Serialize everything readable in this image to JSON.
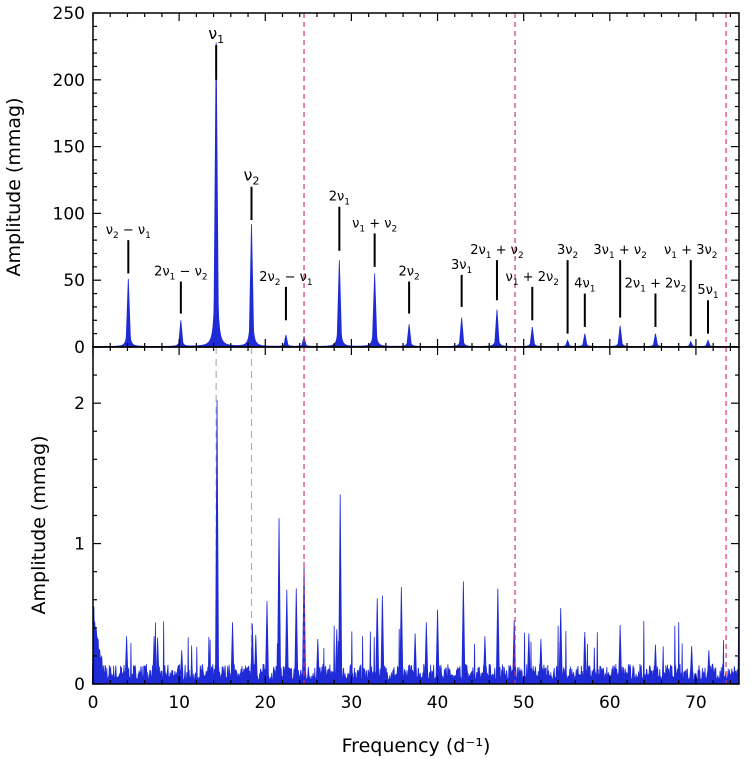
{
  "chart_data": [
    {
      "type": "line",
      "panel": "top",
      "ylabel": "Amplitude (mmag)",
      "xlabel": "",
      "xlim": [
        0,
        75
      ],
      "ylim": [
        0,
        250
      ],
      "xticks": [
        0,
        10,
        20,
        30,
        40,
        50,
        60,
        70
      ],
      "yticks": [
        0,
        50,
        100,
        150,
        200,
        250
      ],
      "grid": false,
      "series_color": "#1f2bd6",
      "vlines_color": "#d6336c",
      "vlines": [
        24.5,
        49.0,
        73.5
      ],
      "peaks": [
        {
          "name": "v2-v1",
          "x": 4.1,
          "y": 51,
          "label_main": "ν",
          "label_sub1": "2",
          "label_op": " − ν",
          "label_sub2": "1",
          "label_prefix": "",
          "tick_top": 80,
          "tick_bottom": 55
        },
        {
          "name": "2v1-v2",
          "x": 10.2,
          "y": 20,
          "label_prefix": "2ν",
          "label_main": "",
          "label_sub1": "1",
          "label_op": " − ν",
          "label_sub2": "2",
          "tick_top": 49,
          "tick_bottom": 25
        },
        {
          "name": "v1",
          "x": 14.3,
          "y": 228,
          "label_prefix": "",
          "label_main": "ν",
          "label_sub1": "1",
          "label_op": "",
          "label_sub2": "",
          "tick_top": 226,
          "tick_bottom": 200
        },
        {
          "name": "v2",
          "x": 18.4,
          "y": 92,
          "label_prefix": "",
          "label_main": "ν",
          "label_sub1": "2",
          "label_op": "",
          "label_sub2": "",
          "tick_top": 120,
          "tick_bottom": 95
        },
        {
          "name": "2v2-v1",
          "x": 22.4,
          "y": 9,
          "label_prefix": "2ν",
          "label_main": "",
          "label_sub1": "2",
          "label_op": " − ν",
          "label_sub2": "1",
          "tick_top": 45,
          "tick_bottom": 20
        },
        {
          "name": "extra-24",
          "x": 24.5,
          "y": 8,
          "label_prefix": "",
          "label_main": "",
          "label_sub1": "",
          "label_op": "",
          "label_sub2": "",
          "tick_top": 0,
          "tick_bottom": 0
        },
        {
          "name": "2v1",
          "x": 28.6,
          "y": 65,
          "label_prefix": "2ν",
          "label_main": "",
          "label_sub1": "1",
          "label_op": "",
          "label_sub2": "",
          "tick_top": 105,
          "tick_bottom": 72
        },
        {
          "name": "v1+v2",
          "x": 32.7,
          "y": 55,
          "label_prefix": "",
          "label_main": "ν",
          "label_sub1": "1",
          "label_op": " + ν",
          "label_sub2": "2",
          "tick_top": 85,
          "tick_bottom": 60
        },
        {
          "name": "2v2",
          "x": 36.7,
          "y": 17,
          "label_prefix": "2ν",
          "label_main": "",
          "label_sub1": "2",
          "label_op": "",
          "label_sub2": "",
          "tick_top": 49,
          "tick_bottom": 25
        },
        {
          "name": "3v1",
          "x": 42.8,
          "y": 22,
          "label_prefix": "3ν",
          "label_main": "",
          "label_sub1": "1",
          "label_op": "",
          "label_sub2": "",
          "tick_top": 54,
          "tick_bottom": 30
        },
        {
          "name": "2v1+v2",
          "x": 46.9,
          "y": 28,
          "label_prefix": "2ν",
          "label_main": "",
          "label_sub1": "1",
          "label_op": " + ν",
          "label_sub2": "2",
          "tick_top": 65,
          "tick_bottom": 35
        },
        {
          "name": "v1+2v2",
          "x": 51.0,
          "y": 15,
          "label_prefix": "",
          "label_main": "ν",
          "label_sub1": "1",
          "label_op": " + 2ν",
          "label_sub2": "2",
          "tick_top": 45,
          "tick_bottom": 20
        },
        {
          "name": "3v2",
          "x": 55.1,
          "y": 5,
          "label_prefix": "3ν",
          "label_main": "",
          "label_sub1": "2",
          "label_op": "",
          "label_sub2": "",
          "tick_top": 65,
          "tick_bottom": 10
        },
        {
          "name": "4v1",
          "x": 57.1,
          "y": 10,
          "label_prefix": "4ν",
          "label_main": "",
          "label_sub1": "1",
          "label_op": "",
          "label_sub2": "",
          "tick_top": 40,
          "tick_bottom": 15
        },
        {
          "name": "3v1+v2",
          "x": 61.2,
          "y": 16,
          "label_prefix": "3ν",
          "label_main": "",
          "label_sub1": "1",
          "label_op": " + ν",
          "label_sub2": "2",
          "tick_top": 65,
          "tick_bottom": 22
        },
        {
          "name": "2v1+2v2",
          "x": 65.3,
          "y": 10,
          "label_prefix": "2ν",
          "label_main": "",
          "label_sub1": "1",
          "label_op": " + 2ν",
          "label_sub2": "2",
          "tick_top": 40,
          "tick_bottom": 15
        },
        {
          "name": "v1+3v2",
          "x": 69.4,
          "y": 4,
          "label_prefix": "",
          "label_main": "ν",
          "label_sub1": "1",
          "label_op": " + 3ν",
          "label_sub2": "2",
          "tick_top": 65,
          "tick_bottom": 8
        },
        {
          "name": "5v1",
          "x": 71.4,
          "y": 5,
          "label_prefix": "5ν",
          "label_main": "",
          "label_sub1": "1",
          "label_op": "",
          "label_sub2": "",
          "tick_top": 35,
          "tick_bottom": 10
        }
      ]
    },
    {
      "type": "line",
      "panel": "bottom",
      "ylabel": "Amplitude (mmag)",
      "xlabel": "Frequency (d⁻¹)",
      "xlim": [
        0,
        75
      ],
      "ylim": [
        0,
        2.4
      ],
      "xticks": [
        0,
        10,
        20,
        30,
        40,
        50,
        60,
        70
      ],
      "yticks": [
        0,
        1,
        2
      ],
      "grid": false,
      "series_color": "#1f2bd6",
      "vlines_color": "#d6336c",
      "vlines": [
        24.5,
        49.0,
        73.5
      ],
      "gray_vlines_color": "#b0b0b0",
      "gray_vlines": [
        14.3,
        18.4
      ],
      "peaks": [
        {
          "x": 0.1,
          "y": 0.55
        },
        {
          "x": 3.9,
          "y": 0.34
        },
        {
          "x": 7.1,
          "y": 0.34
        },
        {
          "x": 7.5,
          "y": 0.33
        },
        {
          "x": 10.3,
          "y": 0.24
        },
        {
          "x": 14.4,
          "y": 2.02
        },
        {
          "x": 16.2,
          "y": 0.44
        },
        {
          "x": 18.5,
          "y": 0.43
        },
        {
          "x": 18.9,
          "y": 0.35
        },
        {
          "x": 20.2,
          "y": 0.59
        },
        {
          "x": 21.6,
          "y": 1.18
        },
        {
          "x": 22.5,
          "y": 0.67
        },
        {
          "x": 23.6,
          "y": 0.68
        },
        {
          "x": 24.5,
          "y": 0.87
        },
        {
          "x": 26.1,
          "y": 0.32
        },
        {
          "x": 28.3,
          "y": 0.39
        },
        {
          "x": 28.7,
          "y": 1.35
        },
        {
          "x": 33.0,
          "y": 0.61
        },
        {
          "x": 33.6,
          "y": 0.63
        },
        {
          "x": 35.8,
          "y": 0.69
        },
        {
          "x": 37.4,
          "y": 0.36
        },
        {
          "x": 38.7,
          "y": 0.44
        },
        {
          "x": 40.0,
          "y": 0.53
        },
        {
          "x": 43.0,
          "y": 0.73
        },
        {
          "x": 45.5,
          "y": 0.34
        },
        {
          "x": 47.0,
          "y": 0.68
        },
        {
          "x": 48.9,
          "y": 0.45
        },
        {
          "x": 50.6,
          "y": 0.36
        },
        {
          "x": 52.0,
          "y": 0.32
        },
        {
          "x": 54.3,
          "y": 0.54
        },
        {
          "x": 57.1,
          "y": 0.37
        },
        {
          "x": 61.2,
          "y": 0.42
        },
        {
          "x": 65.3,
          "y": 0.28
        },
        {
          "x": 69.5,
          "y": 0.27
        },
        {
          "x": 71.5,
          "y": 0.24
        }
      ]
    }
  ]
}
